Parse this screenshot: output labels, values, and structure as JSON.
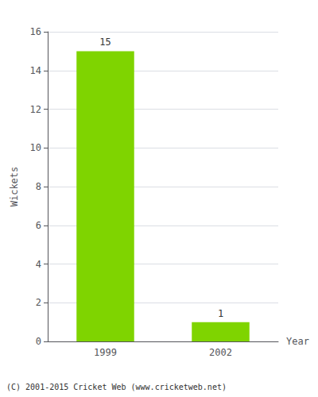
{
  "chart_data": {
    "type": "bar",
    "categories": [
      "1999",
      "2002"
    ],
    "values": [
      15,
      1
    ],
    "color": "#7FD400",
    "xlabel": "Year",
    "ylabel": "Wickets",
    "ylim": [
      0,
      16
    ],
    "yticks": [
      0,
      2,
      4,
      6,
      8,
      10,
      12,
      14,
      16
    ],
    "grid": true,
    "data_labels": true,
    "annotations": [
      "(C) 2001-2015 Cricket Web (www.cricketweb.net)"
    ]
  }
}
